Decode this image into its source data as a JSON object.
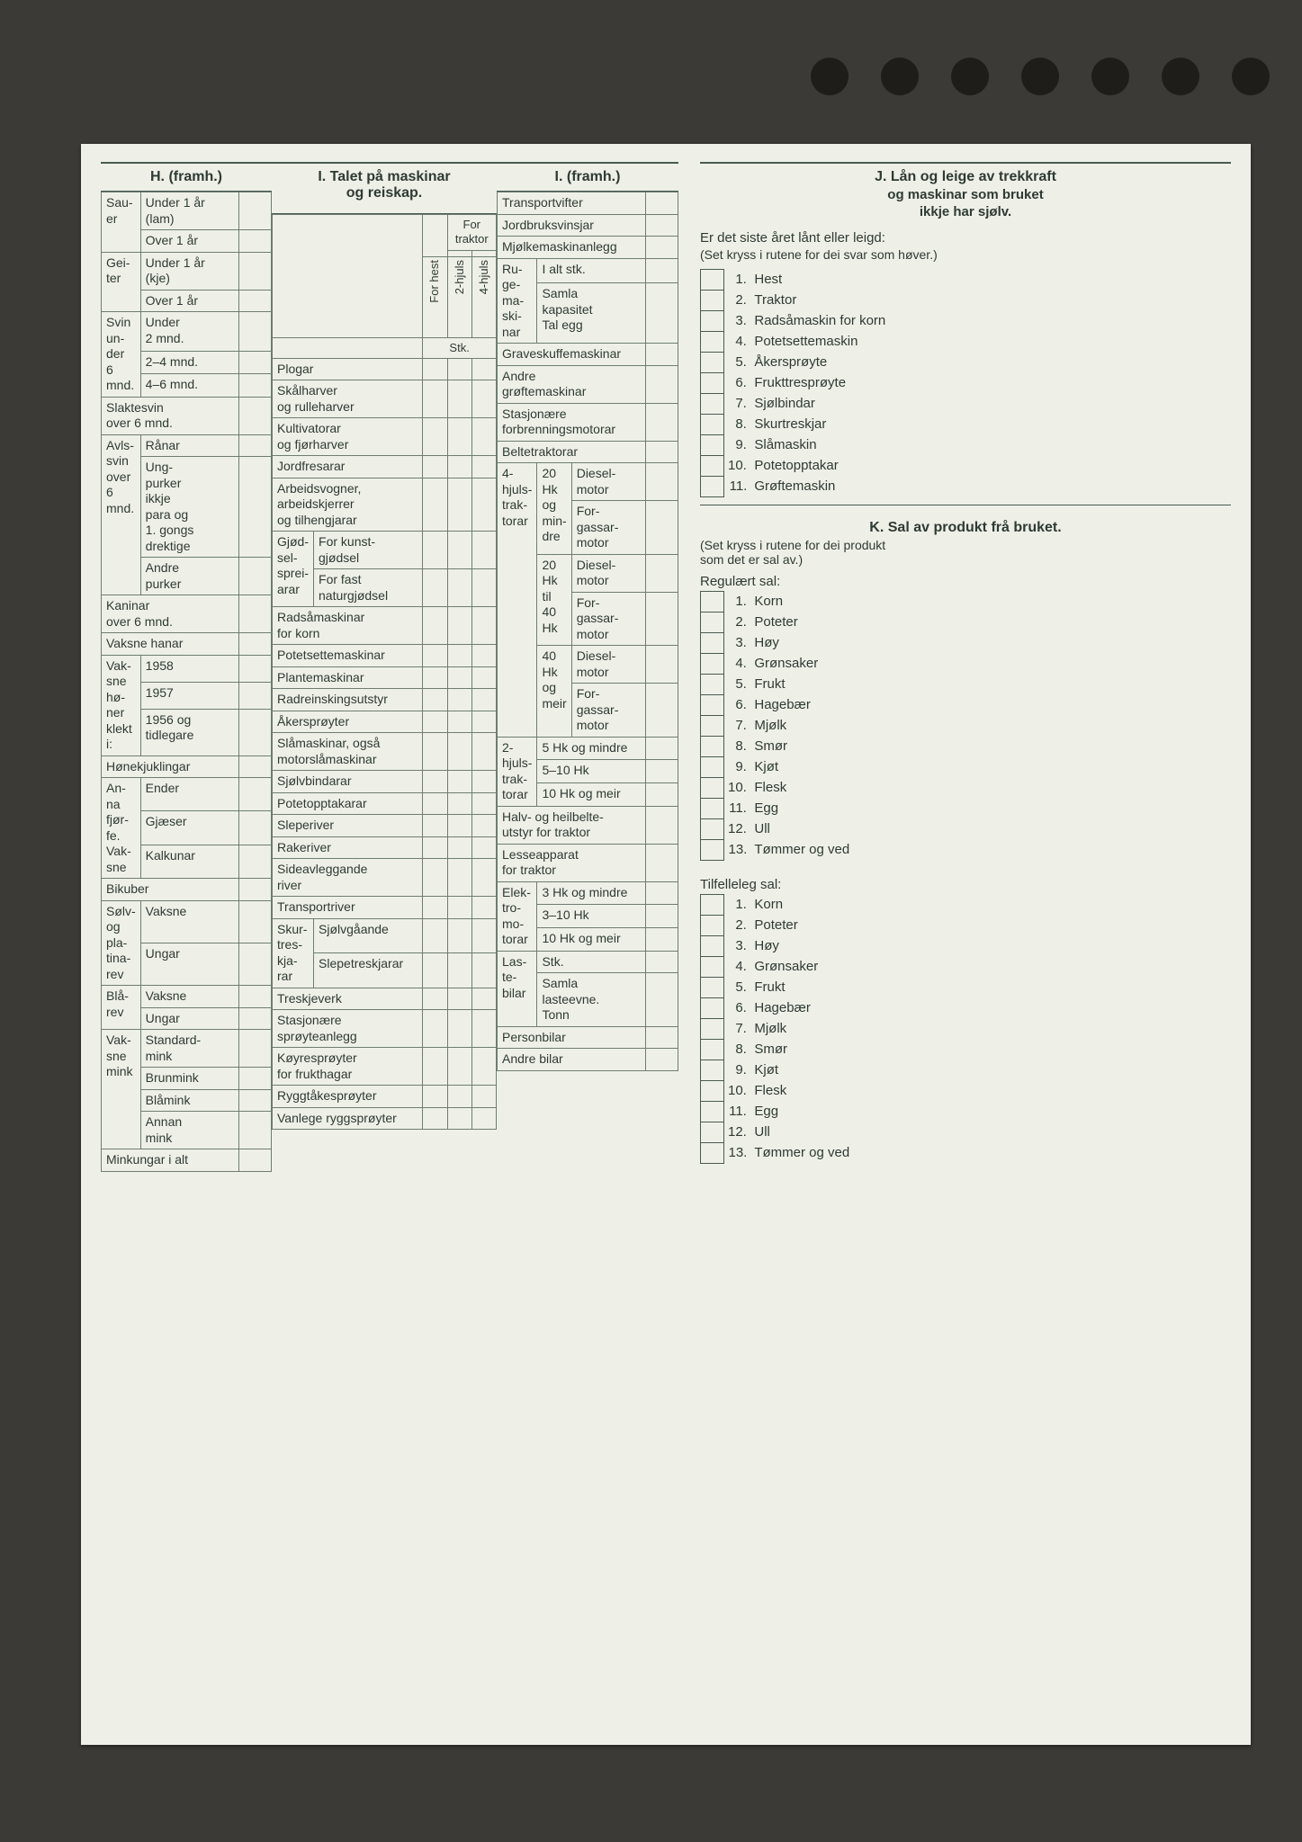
{
  "colors": {
    "line": "#4a5a52",
    "paper": "#eef0e7",
    "bg": "#3b3a36",
    "text": "#2f3a34"
  },
  "H": {
    "title": "H. (framh.)",
    "rows": [
      {
        "side": "Sau-\ner",
        "sub": [
          {
            "l": "Under 1 år\n(lam)"
          },
          {
            "l": "Over 1 år"
          }
        ]
      },
      {
        "side": "Gei-\nter",
        "sub": [
          {
            "l": "Under 1 år\n(kje)"
          },
          {
            "l": "Over 1 år"
          }
        ]
      },
      {
        "side": "Svin\nun-\nder\n6\nmnd.",
        "sub": [
          {
            "l": "Under\n2 mnd."
          },
          {
            "l": "2–4 mnd."
          },
          {
            "l": "4–6 mnd."
          }
        ]
      },
      {
        "full": "Slaktesvin\nover 6 mnd."
      },
      {
        "side": "Avls-\nsvin\nover\n6\nmnd.",
        "sub": [
          {
            "l": "Rånar"
          },
          {
            "l": "Ung-\npurker\nikkje\npara og\n1. gongs\ndrektige"
          },
          {
            "l": "Andre\npurker"
          }
        ]
      },
      {
        "full": "Kaninar\nover 6 mnd."
      },
      {
        "full": "Vaksne hanar"
      },
      {
        "side": "Vak-\nsne\nhø-\nner\nklekt\ni:",
        "sub": [
          {
            "l": "1958"
          },
          {
            "l": "1957"
          },
          {
            "l": "1956 og\ntidlegare"
          }
        ]
      },
      {
        "full": "Hønekjuklingar"
      },
      {
        "side": "An-\nna\nfjør-\nfe.\nVak-\nsne",
        "sub": [
          {
            "l": "Ender"
          },
          {
            "l": "Gjæser"
          },
          {
            "l": "Kalkunar"
          }
        ]
      },
      {
        "full": "Bikuber"
      },
      {
        "side": "Sølv-\nog\npla-\ntina-\nrev",
        "sub": [
          {
            "l": "Vaksne"
          },
          {
            "l": "Ungar"
          }
        ]
      },
      {
        "side": "Blå-\nrev",
        "sub": [
          {
            "l": "Vaksne"
          },
          {
            "l": "Ungar"
          }
        ]
      },
      {
        "side": "Vak-\nsne\nmink",
        "sub": [
          {
            "l": "Standard-\nmink"
          },
          {
            "l": "Brunmink"
          },
          {
            "l": "Blåmink"
          },
          {
            "l": "Annan\nmink"
          }
        ]
      },
      {
        "full": "Minkungar i alt"
      }
    ]
  },
  "I": {
    "title": "I. Talet på maskinar\nog reiskap.",
    "head": {
      "forhest": "For hest",
      "fortraktor": "For\ntraktor",
      "h2": "2-hjuls",
      "h4": "4-hjuls",
      "stk": "Stk."
    },
    "rows": [
      "Plogar",
      "Skålharver\nog rulleharver",
      "Kultivatorar\nog fjørharver",
      "Jordfresarar",
      "Arbeidsvogner,\narbeidskjerrer\nog tilhengjarar"
    ],
    "gjodsel": {
      "side": "Gjød-\nsel-\nsprei-\narar",
      "a": "For kunst-\ngjødsel",
      "b": "For fast\nnaturgjødsel"
    },
    "rows2": [
      "Radsåmaskinar\nfor korn",
      "Potetsettemaskinar",
      "Plantemaskinar",
      "Radreinskingsutstyr",
      "Åkersprøyter",
      "Slåmaskinar, også\nmotorslåmaskinar",
      "Sjølvbindarar",
      "Potetopptakarar",
      "Sleperiver",
      "Rakeriver",
      "Sideavleggande\nriver",
      "Transportriver"
    ],
    "skurt": {
      "side": "Skur-\ntres-\nkja-\nrar",
      "a": "Sjølvgåande",
      "b": "Slepetreskjarar"
    },
    "rows3": [
      "Treskjeverk",
      "Stasjonære\nsprøyteanlegg",
      "Køyresprøyter\nfor frukthagar",
      "Ryggtåkesprøyter",
      "Vanlege ryggsprøyter"
    ]
  },
  "I2": {
    "title": "I. (framh.)",
    "rows": [
      "Transportvifter",
      "Jordbruksvinsjar",
      "Mjølkemaskinanlegg"
    ],
    "ruge": {
      "side": "Ru-\nge-\nma-\nski-\nnar",
      "a": "I alt stk.",
      "b": "Samla\nkapasitet\nTal egg"
    },
    "rows2": [
      "Graveskuffemaskinar",
      "Andre\ngrøftemaskinar",
      "Stasjonære\nforbrenningsmotorar",
      "Beltetraktorar"
    ],
    "hjuls4": {
      "side": "4-\nhjuls-\ntrak-\ntorar",
      "grp": [
        {
          "h": "20\nHk\nog\nmin-\ndre",
          "a": "Diesel-\nmotor",
          "b": "For-\ngassar-\nmotor"
        },
        {
          "h": "20\nHk\ntil\n40\nHk",
          "a": "Diesel-\nmotor",
          "b": "For-\ngassar-\nmotor"
        },
        {
          "h": "40\nHk\nog\nmeir",
          "a": "Diesel-\nmotor",
          "b": "For-\ngassar-\nmotor"
        }
      ]
    },
    "hjuls2": {
      "side": "2-\nhjuls-\ntrak-\ntorar",
      "r": [
        "5 Hk og mindre",
        "5–10 Hk",
        "10 Hk og meir"
      ]
    },
    "rowsX": [
      "Halv- og heilbelte-\nutstyr for traktor",
      "Lesseapparat\nfor traktor"
    ],
    "elektro": {
      "side": "Elek-\ntro-\nmo-\ntorar",
      "r": [
        "3 Hk og mindre",
        "3–10 Hk",
        "10 Hk og meir"
      ]
    },
    "laste": {
      "side": "Las-\nte-\nbilar",
      "a": "Stk.",
      "b": "Samla\nlasteevne.\nTonn"
    },
    "rows4": [
      "Personbilar",
      "Andre bilar"
    ]
  },
  "J": {
    "title": "J. Lån og leige av trekkraft",
    "title2": "og maskinar som bruket\nikkje har sjølv.",
    "q": "Er det siste året lånt eller leigd:",
    "q2": "(Set kryss i rutene for dei svar som høver.)",
    "items": [
      "Hest",
      "Traktor",
      "Radsåmaskin for korn",
      "Potetsettemaskin",
      "Åkersprøyte",
      "Frukttresprøyte",
      "Sjølbindar",
      "Skurtreskjar",
      "Slåmaskin",
      "Potetopptakar",
      "Grøftemaskin"
    ]
  },
  "K": {
    "title": "K. Sal av produkt frå bruket.",
    "q": "(Set kryss i rutene for dei produkt\nsom det er sal av.)",
    "reg": "Regulært sal:",
    "items": [
      "Korn",
      "Poteter",
      "Høy",
      "Grønsaker",
      "Frukt",
      "Hagebær",
      "Mjølk",
      "Smør",
      "Kjøt",
      "Flesk",
      "Egg",
      "Ull",
      "Tømmer og ved"
    ],
    "tilf": "Tilfelleleg sal:",
    "items2": [
      "Korn",
      "Poteter",
      "Høy",
      "Grønsaker",
      "Frukt",
      "Hagebær",
      "Mjølk",
      "Smør",
      "Kjøt",
      "Flesk",
      "Egg",
      "Ull",
      "Tømmer og ved"
    ]
  }
}
